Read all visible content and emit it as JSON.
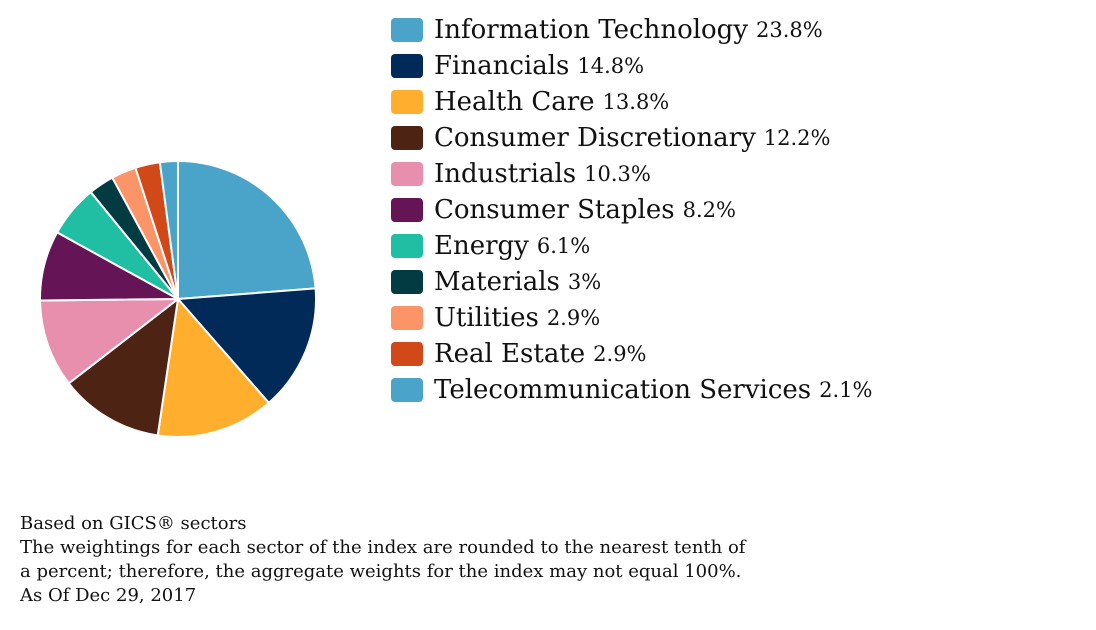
{
  "chart_data": {
    "type": "pie",
    "slices": [
      {
        "label": "Information Technology",
        "value": 23.8,
        "value_label": "23.8%",
        "color": "#4aa3c8"
      },
      {
        "label": "Financials",
        "value": 14.8,
        "value_label": "14.8%",
        "color": "#022a59"
      },
      {
        "label": "Health Care",
        "value": 13.8,
        "value_label": "13.8%",
        "color": "#ffae2d"
      },
      {
        "label": "Consumer Discretionary",
        "value": 12.2,
        "value_label": "12.2%",
        "color": "#4d2314"
      },
      {
        "label": "Industrials",
        "value": 10.3,
        "value_label": "10.3%",
        "color": "#e98fae"
      },
      {
        "label": "Consumer Staples",
        "value": 8.2,
        "value_label": "8.2%",
        "color": "#651456"
      },
      {
        "label": "Energy",
        "value": 6.1,
        "value_label": "6.1%",
        "color": "#20bea3"
      },
      {
        "label": "Materials",
        "value": 3.0,
        "value_label": "3%",
        "color": "#033b42"
      },
      {
        "label": "Utilities",
        "value": 2.9,
        "value_label": "2.9%",
        "color": "#fb9466"
      },
      {
        "label": "Real Estate",
        "value": 2.9,
        "value_label": "2.9%",
        "color": "#d14819"
      },
      {
        "label": "Telecommunication Services",
        "value": 2.1,
        "value_label": "2.1%",
        "color": "#4aa3c8"
      }
    ],
    "legend_position": "right",
    "start_direction": "top",
    "slice_order": "clockwise"
  },
  "footnotes": {
    "line1": "Based on GICS® sectors",
    "line2": "The weightings for each sector of the index are rounded to the nearest tenth of",
    "line3": "a percent; therefore, the aggregate weights for the index may not equal 100%.",
    "line4": "As Of Dec 29, 2017"
  }
}
